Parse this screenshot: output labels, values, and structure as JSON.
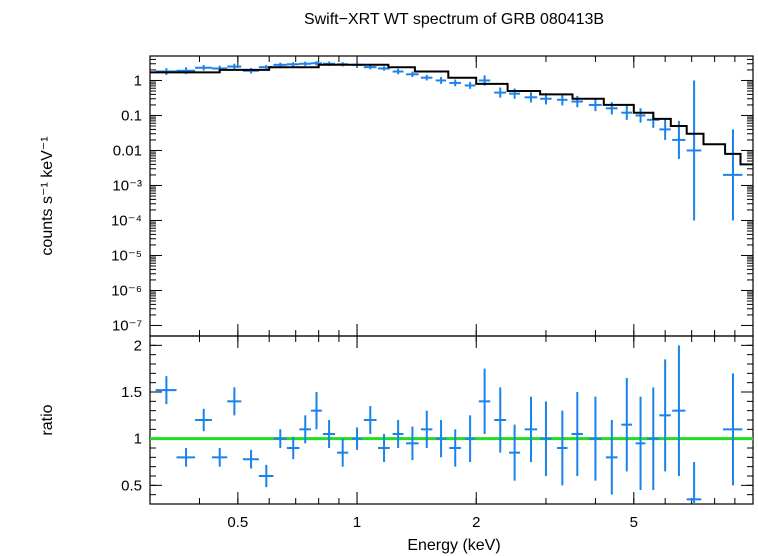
{
  "chart_data": [
    {
      "type": "scatter",
      "title": "Swift−XRT WT spectrum of GRB 080413B",
      "ylabel": "counts s⁻¹ keV⁻¹",
      "xscale": "log",
      "yscale": "log",
      "xlim": [
        0.3,
        10
      ],
      "ylim": [
        5e-08,
        5
      ],
      "ytick_labels": [
        "1",
        "0.1",
        "0.01",
        "10⁻³",
        "10⁻⁴",
        "10⁻⁵",
        "10⁻⁶",
        "10⁻⁷"
      ],
      "ytick_values": [
        1,
        0.1,
        0.01,
        0.001,
        0.0001,
        1e-05,
        1e-06,
        1e-07
      ],
      "colors": {
        "data": "#1a82e8",
        "model": "#000000"
      },
      "series": [
        {
          "kind": "data-with-errors",
          "x": [
            0.33,
            0.37,
            0.41,
            0.45,
            0.49,
            0.54,
            0.59,
            0.64,
            0.69,
            0.74,
            0.79,
            0.85,
            0.92,
            1.0,
            1.08,
            1.17,
            1.27,
            1.38,
            1.5,
            1.63,
            1.77,
            1.93,
            2.1,
            2.3,
            2.5,
            2.75,
            3.0,
            3.3,
            3.6,
            4.0,
            4.4,
            4.8,
            5.2,
            5.6,
            6.0,
            6.5,
            7.1,
            8.9
          ],
          "y": [
            1.8,
            1.9,
            2.3,
            2.2,
            2.5,
            1.9,
            2.4,
            2.8,
            2.9,
            3.0,
            3.1,
            3.0,
            2.9,
            2.8,
            2.4,
            2.2,
            1.8,
            1.5,
            1.2,
            1.0,
            0.85,
            0.72,
            1.0,
            0.45,
            0.42,
            0.33,
            0.3,
            0.28,
            0.25,
            0.2,
            0.16,
            0.12,
            0.1,
            0.075,
            0.04,
            0.02,
            0.01,
            0.002
          ],
          "xerr": [
            0.02,
            0.02,
            0.02,
            0.02,
            0.02,
            0.025,
            0.025,
            0.025,
            0.025,
            0.025,
            0.025,
            0.03,
            0.03,
            0.03,
            0.04,
            0.04,
            0.04,
            0.05,
            0.05,
            0.05,
            0.06,
            0.06,
            0.07,
            0.08,
            0.08,
            0.1,
            0.1,
            0.1,
            0.12,
            0.15,
            0.15,
            0.15,
            0.15,
            0.2,
            0.2,
            0.25,
            0.3,
            0.5
          ],
          "yerr_factor": [
            1.25,
            1.25,
            1.2,
            1.2,
            1.2,
            1.2,
            1.15,
            1.15,
            1.15,
            1.15,
            1.15,
            1.15,
            1.15,
            1.15,
            1.15,
            1.15,
            1.2,
            1.2,
            1.2,
            1.25,
            1.25,
            1.25,
            1.4,
            1.4,
            1.4,
            1.4,
            1.45,
            1.45,
            1.45,
            1.5,
            1.5,
            1.6,
            1.6,
            1.7,
            2.0,
            3.5,
            100,
            20
          ]
        },
        {
          "kind": "model-step",
          "x": [
            0.3,
            0.45,
            0.6,
            0.8,
            1.0,
            1.2,
            1.4,
            1.7,
            2.0,
            2.4,
            2.9,
            3.5,
            4.2,
            5.0,
            5.6,
            6.2,
            6.8,
            7.5,
            8.5,
            9.3,
            10
          ],
          "y": [
            1.7,
            2.0,
            2.4,
            2.8,
            2.8,
            2.4,
            1.8,
            1.2,
            0.8,
            0.5,
            0.4,
            0.3,
            0.2,
            0.12,
            0.08,
            0.05,
            0.03,
            0.015,
            0.008,
            0.004,
            0.004
          ]
        }
      ]
    },
    {
      "type": "scatter",
      "xlabel": "Energy (keV)",
      "ylabel": "ratio",
      "xscale": "log",
      "xlim": [
        0.3,
        10
      ],
      "ylim": [
        0.3,
        2.1
      ],
      "xtick_labels": [
        "0.5",
        "1",
        "2",
        "5"
      ],
      "xtick_values": [
        0.5,
        1,
        2,
        5
      ],
      "ytick_labels": [
        "0.5",
        "1",
        "1.5",
        "2"
      ],
      "ytick_values": [
        0.5,
        1,
        1.5,
        2
      ],
      "reference_line": {
        "y": 1,
        "color": "#22dd22"
      },
      "colors": {
        "data": "#1a82e8"
      },
      "series": [
        {
          "kind": "data-with-errors",
          "x": [
            0.33,
            0.37,
            0.41,
            0.45,
            0.49,
            0.54,
            0.59,
            0.64,
            0.69,
            0.74,
            0.79,
            0.85,
            0.92,
            1.0,
            1.08,
            1.17,
            1.27,
            1.38,
            1.5,
            1.63,
            1.77,
            1.93,
            2.1,
            2.3,
            2.5,
            2.75,
            3.0,
            3.3,
            3.6,
            4.0,
            4.4,
            4.8,
            5.2,
            5.6,
            6.0,
            6.5,
            7.1,
            8.9
          ],
          "y": [
            1.52,
            0.8,
            1.2,
            0.8,
            1.4,
            0.78,
            0.6,
            1.0,
            0.9,
            1.1,
            1.3,
            1.05,
            0.85,
            1.0,
            1.2,
            0.9,
            1.05,
            0.95,
            1.1,
            1.0,
            0.9,
            1.0,
            1.4,
            1.2,
            0.85,
            1.1,
            1.0,
            0.9,
            1.05,
            1.0,
            0.8,
            1.15,
            0.95,
            1.0,
            1.25,
            1.3,
            0.35,
            1.1
          ],
          "xerr": [
            0.02,
            0.02,
            0.02,
            0.02,
            0.02,
            0.025,
            0.025,
            0.025,
            0.025,
            0.025,
            0.025,
            0.03,
            0.03,
            0.03,
            0.04,
            0.04,
            0.04,
            0.05,
            0.05,
            0.05,
            0.06,
            0.06,
            0.07,
            0.08,
            0.08,
            0.1,
            0.1,
            0.1,
            0.12,
            0.15,
            0.15,
            0.15,
            0.15,
            0.2,
            0.2,
            0.25,
            0.3,
            0.5
          ],
          "yerr": [
            0.15,
            0.1,
            0.12,
            0.1,
            0.15,
            0.1,
            0.12,
            0.1,
            0.12,
            0.15,
            0.2,
            0.15,
            0.15,
            0.12,
            0.15,
            0.15,
            0.15,
            0.18,
            0.2,
            0.2,
            0.2,
            0.25,
            0.35,
            0.35,
            0.3,
            0.35,
            0.4,
            0.4,
            0.45,
            0.45,
            0.4,
            0.5,
            0.5,
            0.55,
            0.6,
            0.7,
            0.4,
            0.6
          ]
        }
      ]
    }
  ]
}
